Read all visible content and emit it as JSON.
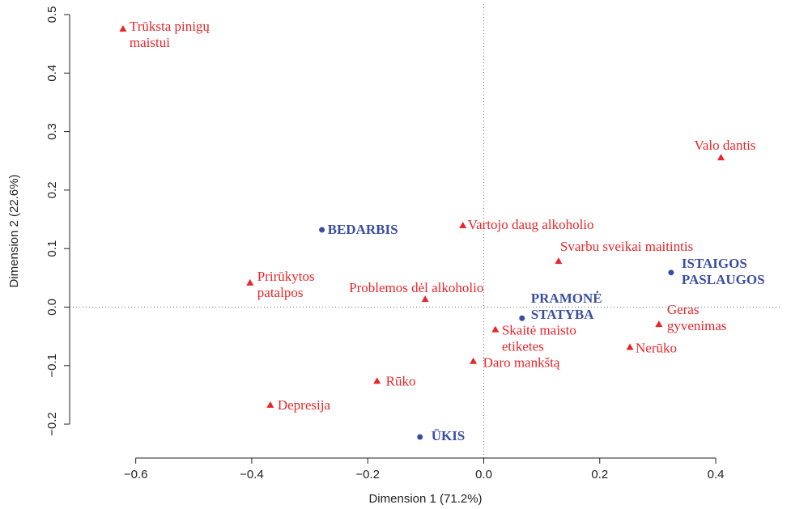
{
  "chart_data": {
    "type": "scatter",
    "x_label": "Dimension 1 (71.2%)",
    "y_label": "Dimension 2 (22.6%)",
    "xlim": [
      -0.714,
      0.513
    ],
    "ylim": [
      -0.258,
      0.518
    ],
    "xticks": [
      {
        "value": -0.6,
        "label": "−0.6"
      },
      {
        "value": -0.4,
        "label": "−0.4"
      },
      {
        "value": -0.2,
        "label": "−0.2"
      },
      {
        "value": 0,
        "label": "0.0"
      },
      0.2,
      0.4
    ],
    "yticks": [
      {
        "value": -0.2,
        "label": "−0.2"
      },
      {
        "value": -0.1,
        "label": "−0.1"
      },
      {
        "value": 0,
        "label": "0.0"
      },
      0.1,
      0.2,
      0.3,
      0.4,
      0.5
    ],
    "series": [
      {
        "color": "#e8262a",
        "marker": "triangle",
        "bold": false,
        "x": [
          -0.622,
          0.409,
          -0.036,
          0.129,
          -0.403,
          -0.101,
          0.302,
          0.02,
          0.252,
          -0.018,
          -0.184,
          -0.368
        ],
        "y": [
          0.475,
          0.255,
          0.139,
          0.078,
          0.041,
          0.013,
          -0.03,
          -0.039,
          -0.069,
          -0.093,
          -0.127,
          -0.168
        ],
        "labels": [
          [
            "Trūksta pinigų",
            "maistui"
          ],
          [
            "Valo dantis"
          ],
          [
            "Vartojo daug alkoholio"
          ],
          [
            "Svarbu sveikai maitintis"
          ],
          [
            "Prirūkytos",
            "patalpos"
          ],
          [
            "Problemos dėl alkoholio"
          ],
          [
            "Geras",
            "gyvenimas"
          ],
          [
            "Skaitė maisto",
            "etiketes"
          ],
          [
            "Nerūko"
          ],
          [
            "Daro mankštą"
          ],
          [
            "Rūko"
          ],
          [
            "Depresija"
          ]
        ]
      },
      {
        "color": "#3a4ea0",
        "marker": "circle",
        "bold": true,
        "x": [
          -0.279,
          0.323,
          0.066,
          -0.11
        ],
        "y": [
          0.132,
          0.059,
          -0.019,
          -0.222
        ],
        "labels": [
          [
            "BEDARBIS"
          ],
          [
            "ISTAIGOS",
            "PASLAUGOS"
          ],
          [
            "PRAMONĖ",
            "STATYBA"
          ],
          [
            "ŪKIS"
          ]
        ]
      }
    ]
  }
}
